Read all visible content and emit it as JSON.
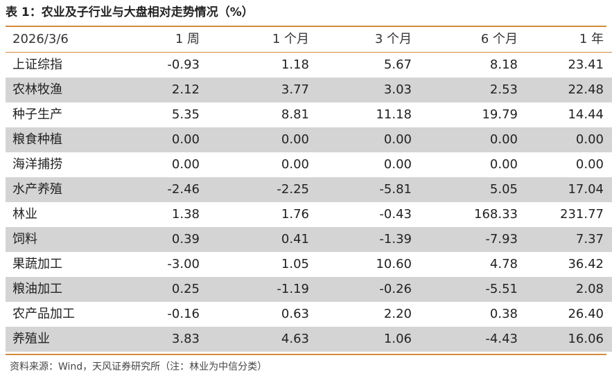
{
  "title": "表 1：农业及子行业与大盘相对走势情况（%）",
  "table": {
    "headers": [
      "2026/3/6",
      "1 周",
      "1 个月",
      "3 个月",
      "6 个月",
      "1 年"
    ],
    "rows": [
      {
        "name": "上证综指",
        "values": [
          "-0.93",
          "1.18",
          "5.67",
          "8.18",
          "23.41"
        ]
      },
      {
        "name": "农林牧渔",
        "values": [
          "2.12",
          "3.77",
          "3.03",
          "2.53",
          "22.48"
        ]
      },
      {
        "name": "种子生产",
        "values": [
          "5.35",
          "8.81",
          "11.18",
          "19.79",
          "14.44"
        ]
      },
      {
        "name": "粮食种植",
        "values": [
          "0.00",
          "0.00",
          "0.00",
          "0.00",
          "0.00"
        ]
      },
      {
        "name": "海洋捕捞",
        "values": [
          "0.00",
          "0.00",
          "0.00",
          "0.00",
          "0.00"
        ]
      },
      {
        "name": "水产养殖",
        "values": [
          "-2.46",
          "-2.25",
          "-5.81",
          "5.05",
          "17.04"
        ]
      },
      {
        "name": "林业",
        "values": [
          "1.38",
          "1.76",
          "-0.43",
          "168.33",
          "231.77"
        ]
      },
      {
        "name": "饲料",
        "values": [
          "0.39",
          "0.41",
          "-1.39",
          "-7.93",
          "7.37"
        ]
      },
      {
        "name": "果蔬加工",
        "values": [
          "-3.00",
          "1.05",
          "10.60",
          "4.78",
          "36.42"
        ]
      },
      {
        "name": "粮油加工",
        "values": [
          "0.25",
          "-1.19",
          "-0.26",
          "-5.51",
          "2.08"
        ]
      },
      {
        "name": "农产品加工",
        "values": [
          "-0.16",
          "0.63",
          "2.20",
          "0.38",
          "26.40"
        ]
      },
      {
        "name": "养殖业",
        "values": [
          "3.83",
          "4.63",
          "1.06",
          "-4.43",
          "16.06"
        ]
      }
    ]
  },
  "source": "资料来源：Wind，天风证券研究所（注：林业为中信分类）",
  "colors": {
    "accent": "#d6893a",
    "stripe": "#d4d4d4",
    "text": "#222222"
  }
}
